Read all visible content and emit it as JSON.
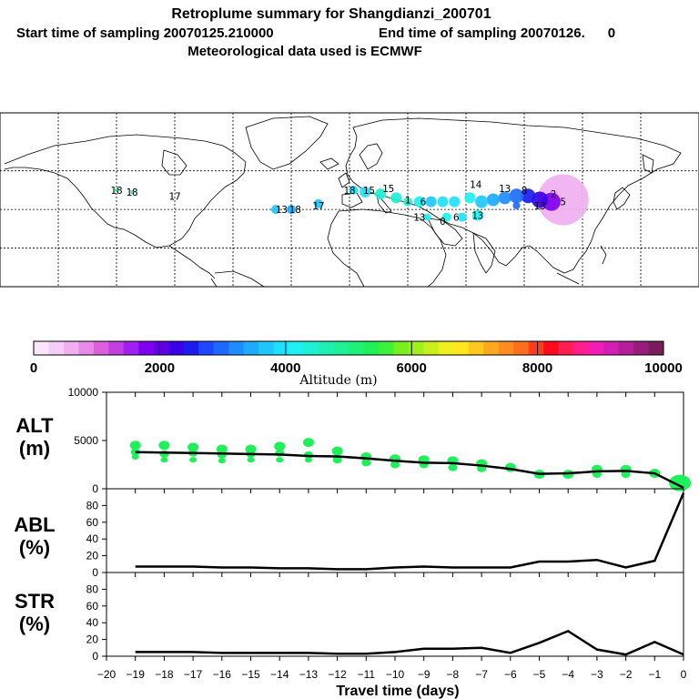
{
  "title": {
    "line1": "Retroplume summary for Shangdianzi_200701",
    "start_time": "Start time of sampling 20070125.210000",
    "end_time": "End time of sampling 20070126.      0",
    "line3": "Meteorological data used is ECMWF"
  },
  "colorbar": {
    "label": "Altitude (m)",
    "ticks": [
      "0",
      "2000",
      "4000",
      "6000",
      "8000",
      "10000"
    ],
    "colors": [
      "#fbe6fb",
      "#f6cdf6",
      "#f0b0f0",
      "#e88ae8",
      "#dc5fdc",
      "#c23fe0",
      "#a020f0",
      "#8000f0",
      "#6000e0",
      "#3c00e8",
      "#1c1cf0",
      "#1f47ff",
      "#1e6aff",
      "#1e8cff",
      "#1eaaff",
      "#1ec8ff",
      "#1ee1ff",
      "#1ef0f0",
      "#1ef0d2",
      "#1ef0b4",
      "#1ef096",
      "#1ef078",
      "#1ef05a",
      "#3cf03c",
      "#78f01e",
      "#a0f01e",
      "#c8f01e",
      "#f0f01e",
      "#ffe61e",
      "#ffc81e",
      "#ffaa1e",
      "#ff8c1e",
      "#ff6e1e",
      "#ff3c1e",
      "#ff0a1e",
      "#ff1e50",
      "#ff1e8c",
      "#f01eb4",
      "#d21eb4",
      "#b41e96",
      "#961e78",
      "#781e5a"
    ]
  },
  "map": {
    "plume_labels": [
      {
        "t": "18",
        "lon": -120,
        "lat": 50
      },
      {
        "t": "18",
        "lon": -112,
        "lat": 49
      },
      {
        "t": "17",
        "lon": -90,
        "lat": 47
      },
      {
        "t": "13",
        "lon": -35,
        "lat": 40
      },
      {
        "t": "18",
        "lon": -28,
        "lat": 40
      },
      {
        "t": "17",
        "lon": -16,
        "lat": 42
      },
      {
        "t": "18",
        "lon": 0,
        "lat": 50
      },
      {
        "t": "15",
        "lon": 10,
        "lat": 50
      },
      {
        "t": "15",
        "lon": 20,
        "lat": 51
      },
      {
        "t": "1",
        "lon": 30,
        "lat": 45
      },
      {
        "t": "6",
        "lon": 38,
        "lat": 44
      },
      {
        "t": "13",
        "lon": 36,
        "lat": 36
      },
      {
        "t": "0",
        "lon": 48,
        "lat": 34
      },
      {
        "t": "6",
        "lon": 55,
        "lat": 36
      },
      {
        "t": "13",
        "lon": 66,
        "lat": 37
      },
      {
        "t": "14",
        "lon": 65,
        "lat": 53
      },
      {
        "t": "13",
        "lon": 80,
        "lat": 51
      },
      {
        "t": "8",
        "lon": 90,
        "lat": 50
      },
      {
        "t": "13",
        "lon": 98,
        "lat": 42
      },
      {
        "t": "2",
        "lon": 105,
        "lat": 48
      },
      {
        "t": "5",
        "lon": 110,
        "lat": 44
      }
    ]
  },
  "yaxis_labels": {
    "alt": [
      "ALT",
      "(m)"
    ],
    "abl": [
      "ABL",
      "(%)"
    ],
    "str": [
      "STR",
      "(%)"
    ]
  },
  "chart_data": [
    {
      "type": "line",
      "title": "ALT",
      "ylabel": "ALT (m)",
      "ylim": [
        0,
        10000
      ],
      "yticks": [
        "0",
        "5000",
        "10000"
      ],
      "x": [
        -19,
        -18,
        -17,
        -16,
        -15,
        -14,
        -13,
        -12,
        -11,
        -10,
        -9,
        -8,
        -7,
        -6,
        -5,
        -4,
        -3,
        -2,
        -1,
        0
      ],
      "values": [
        3800,
        3750,
        3700,
        3650,
        3600,
        3550,
        3400,
        3350,
        3150,
        2900,
        2700,
        2650,
        2400,
        2050,
        1550,
        1600,
        1800,
        1850,
        1600,
        100
      ],
      "cluster_points": [
        {
          "x": -19,
          "y": [
            4500,
            3800,
            3300
          ]
        },
        {
          "x": -18,
          "y": [
            4500,
            3600,
            3000
          ]
        },
        {
          "x": -17,
          "y": [
            4300,
            3700,
            3000
          ]
        },
        {
          "x": -16,
          "y": [
            4100,
            3500,
            2900
          ]
        },
        {
          "x": -15,
          "y": [
            4100,
            3600,
            3000
          ]
        },
        {
          "x": -14,
          "y": [
            4400,
            3700,
            3000
          ]
        },
        {
          "x": -13,
          "y": [
            4800,
            3500,
            3000
          ]
        },
        {
          "x": -12,
          "y": [
            3900,
            3000
          ]
        },
        {
          "x": -11,
          "y": [
            3300,
            2700
          ]
        },
        {
          "x": -10,
          "y": [
            3100,
            2500
          ]
        },
        {
          "x": -9,
          "y": [
            3000,
            2500
          ]
        },
        {
          "x": -8,
          "y": [
            2900,
            2200
          ]
        },
        {
          "x": -7,
          "y": [
            2600,
            2100
          ]
        },
        {
          "x": -6,
          "y": [
            2200
          ]
        },
        {
          "x": -5,
          "y": [
            1500
          ]
        },
        {
          "x": -4,
          "y": [
            1500
          ]
        },
        {
          "x": -3,
          "y": [
            2000,
            1500
          ]
        },
        {
          "x": -2,
          "y": [
            2000,
            1500
          ]
        },
        {
          "x": -1,
          "y": [
            1600
          ]
        },
        {
          "x": 0,
          "y": [
            600
          ]
        }
      ]
    },
    {
      "type": "line",
      "title": "ABL",
      "ylabel": "ABL (%)",
      "ylim": [
        0,
        100
      ],
      "yticks": [
        "0",
        "20",
        "40",
        "60",
        "80"
      ],
      "x": [
        -19,
        -18,
        -17,
        -16,
        -15,
        -14,
        -13,
        -12,
        -11,
        -10,
        -9,
        -8,
        -7,
        -6,
        -5,
        -4,
        -3,
        -2,
        -1,
        0
      ],
      "values": [
        7,
        7,
        7,
        6,
        6,
        5,
        5,
        4,
        4,
        6,
        7,
        6,
        6,
        6,
        13,
        13,
        15,
        6,
        14,
        95
      ]
    },
    {
      "type": "line",
      "title": "STR",
      "ylabel": "STR (%)",
      "ylim": [
        0,
        100
      ],
      "yticks": [
        "0",
        "20",
        "40",
        "60",
        "80"
      ],
      "x": [
        -19,
        -18,
        -17,
        -16,
        -15,
        -14,
        -13,
        -12,
        -11,
        -10,
        -9,
        -8,
        -7,
        -6,
        -5,
        -4,
        -3,
        -2,
        -1,
        0
      ],
      "values": [
        5,
        5,
        5,
        4,
        4,
        4,
        4,
        3,
        3,
        5,
        9,
        9,
        10,
        4,
        16,
        30,
        8,
        2,
        17,
        2
      ]
    }
  ],
  "xaxis": {
    "label": "Travel time (days)",
    "ticks": [
      "−20",
      "−19",
      "−18",
      "−17",
      "−16",
      "−15",
      "−14",
      "−13",
      "−12",
      "−11",
      "−10",
      "−9",
      "−8",
      "−7",
      "−6",
      "−5",
      "−4",
      "−3",
      "−2",
      "−1",
      "0"
    ]
  }
}
